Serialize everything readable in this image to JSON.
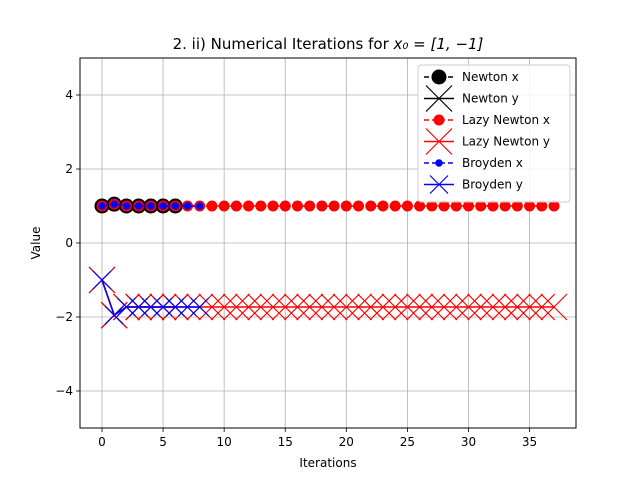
{
  "chart_data": {
    "type": "line",
    "title_text": "2. ii) Numerical Iterations for ",
    "title_math": "x₀ = [1, −1]",
    "xlabel": "Iterations",
    "ylabel": "Value",
    "xlim": [
      -1.8,
      38.8
    ],
    "ylim": [
      -5,
      5
    ],
    "xticks": [
      0,
      5,
      10,
      15,
      20,
      25,
      30,
      35
    ],
    "yticks": [
      -4,
      -2,
      0,
      2,
      4
    ],
    "grid": true,
    "legend_position": "top-right",
    "series": [
      {
        "name": "Newton x",
        "color": "#000000",
        "marker": "circle-large",
        "linestyle": "dashed",
        "x": [
          0,
          1,
          2,
          3,
          4,
          5,
          6
        ],
        "y": [
          1,
          1.05,
          1.0,
          1.0,
          1.0,
          1.0,
          1.0
        ]
      },
      {
        "name": "Newton y",
        "color": "#000000",
        "marker": "x-large",
        "linestyle": "solid",
        "x": [
          0,
          1,
          2,
          3,
          4,
          5,
          6
        ],
        "y": [
          -1,
          -1.95,
          -1.73,
          -1.73,
          -1.73,
          -1.73,
          -1.73
        ]
      },
      {
        "name": "Lazy Newton x",
        "color": "#ff0000",
        "marker": "circle",
        "linestyle": "dashed",
        "x": [
          0,
          1,
          2,
          3,
          4,
          5,
          6,
          7,
          8,
          9,
          10,
          11,
          12,
          13,
          14,
          15,
          16,
          17,
          18,
          19,
          20,
          21,
          22,
          23,
          24,
          25,
          26,
          27,
          28,
          29,
          30,
          31,
          32,
          33,
          34,
          35,
          36,
          37
        ],
        "y": [
          1,
          1.05,
          1,
          1,
          1,
          1,
          1,
          1,
          1,
          1,
          1,
          1,
          1,
          1,
          1,
          1,
          1,
          1,
          1,
          1,
          1,
          1,
          1,
          1,
          1,
          1,
          1,
          1,
          1,
          1,
          1,
          1,
          1,
          1,
          1,
          1,
          1,
          1
        ]
      },
      {
        "name": "Lazy Newton y",
        "color": "#ff0000",
        "marker": "x-large",
        "linestyle": "solid",
        "x": [
          0,
          1,
          2,
          3,
          4,
          5,
          6,
          7,
          8,
          9,
          10,
          11,
          12,
          13,
          14,
          15,
          16,
          17,
          18,
          19,
          20,
          21,
          22,
          23,
          24,
          25,
          26,
          27,
          28,
          29,
          30,
          31,
          32,
          33,
          34,
          35,
          36,
          37
        ],
        "y": [
          -1,
          -1.95,
          -1.73,
          -1.73,
          -1.73,
          -1.73,
          -1.73,
          -1.73,
          -1.73,
          -1.73,
          -1.73,
          -1.73,
          -1.73,
          -1.73,
          -1.73,
          -1.73,
          -1.73,
          -1.73,
          -1.73,
          -1.73,
          -1.73,
          -1.73,
          -1.73,
          -1.73,
          -1.73,
          -1.73,
          -1.73,
          -1.73,
          -1.73,
          -1.73,
          -1.73,
          -1.73,
          -1.73,
          -1.73,
          -1.73,
          -1.73,
          -1.73,
          -1.73
        ]
      },
      {
        "name": "Broyden x",
        "color": "#0000ff",
        "marker": "circle-small",
        "linestyle": "dashed",
        "x": [
          0,
          1,
          2,
          3,
          4,
          5,
          6,
          7,
          8
        ],
        "y": [
          1,
          1.05,
          1.0,
          1.0,
          1.0,
          1.0,
          1.0,
          1.0,
          1.0
        ]
      },
      {
        "name": "Broyden y",
        "color": "#0000ff",
        "marker": "x",
        "linestyle": "solid",
        "x": [
          0,
          1,
          2,
          3,
          4,
          5,
          6,
          7,
          8
        ],
        "y": [
          -1,
          -1.95,
          -1.73,
          -1.73,
          -1.73,
          -1.73,
          -1.73,
          -1.73,
          -1.73
        ]
      }
    ]
  }
}
